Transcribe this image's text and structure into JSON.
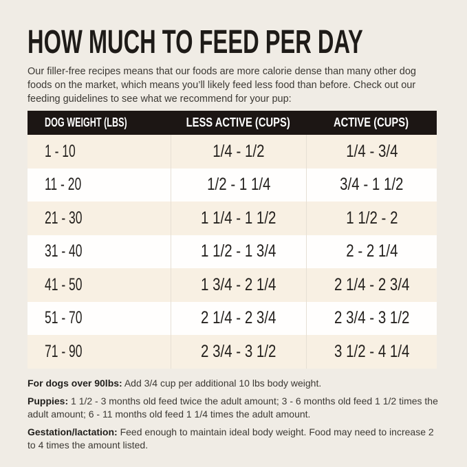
{
  "page": {
    "title": "HOW MUCH TO FEED PER DAY",
    "intro": "Our filler-free recipes means that our foods are more calorie dense than many other dog foods on the market, which means you’ll likely feed less food than before. Check out our feeding guidelines to see what we recommend for your pup:"
  },
  "table": {
    "columns": [
      "DOG WEIGHT (LBS)",
      "LESS ACTIVE (CUPS)",
      "ACTIVE (CUPS)"
    ],
    "rows": [
      {
        "weight": "1 - 10",
        "less_active": "1/4 - 1/2",
        "active": "1/4 - 3/4"
      },
      {
        "weight": "11 - 20",
        "less_active": "1/2 - 1 1/4",
        "active": "3/4 - 1 1/2"
      },
      {
        "weight": "21 - 30",
        "less_active": "1 1/4 - 1 1/2",
        "active": "1 1/2 - 2"
      },
      {
        "weight": "31 - 40",
        "less_active": "1 1/2 - 1 3/4",
        "active": "2 - 2 1/4"
      },
      {
        "weight": "41 - 50",
        "less_active": "1 3/4 - 2 1/4",
        "active": "2 1/4 - 2 3/4"
      },
      {
        "weight": "51 - 70",
        "less_active": "2 1/4 - 2 3/4",
        "active": "2 3/4 - 3 1/2"
      },
      {
        "weight": "71 - 90",
        "less_active": "2 3/4 - 3 1/2",
        "active": "3 1/2 - 4 1/4"
      }
    ]
  },
  "notes": [
    {
      "label": "For dogs over 90lbs:",
      "text": "Add 3/4 cup per additional 10 lbs body weight."
    },
    {
      "label": "Puppies:",
      "text": "1 1/2 - 3 months old feed twice the adult amount; 3 - 6 months old feed 1 1/2 times the adult amount; 6 - 11 months old feed 1 1/4 times the adult amount."
    },
    {
      "label": "Gestation/lactation:",
      "text": "Feed enough to maintain ideal body weight. Food may need to increase 2 to 4 times the amount listed."
    }
  ],
  "colors": {
    "page_bg": "#f0ece5",
    "header_bg": "#1c1614",
    "header_text": "#ffffff",
    "row_beige": "#f8f0e3",
    "row_white": "#fffefd",
    "divider": "#e6dfd4",
    "title_text": "#1e1b18",
    "body_text": "#3b3833",
    "cell_text": "#24211e"
  }
}
